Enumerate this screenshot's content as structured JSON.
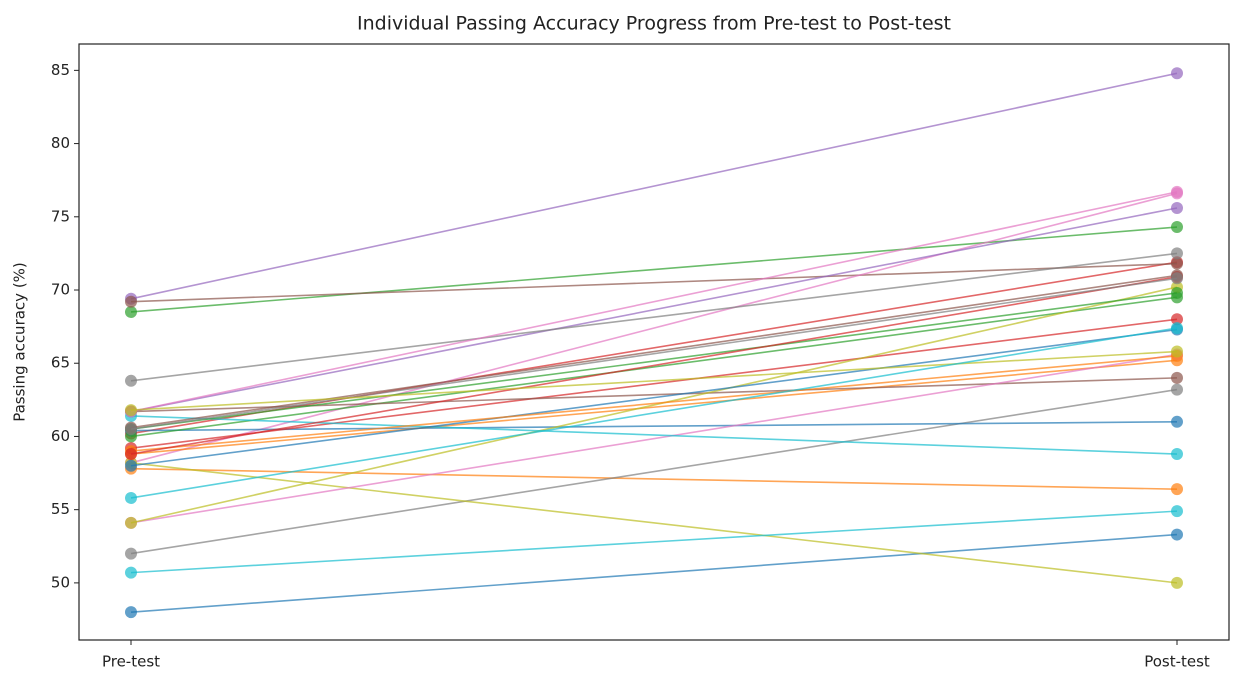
{
  "chart_data": {
    "type": "slope",
    "title": "Individual Passing Accuracy Progress from Pre-test to Post-test",
    "ylabel": "Passing accuracy (%)",
    "categories": [
      "Pre-test",
      "Post-test"
    ],
    "ylim": [
      46.1,
      86.8
    ],
    "yticks": [
      50,
      55,
      60,
      65,
      70,
      75,
      80,
      85
    ],
    "grid": false,
    "series": [
      {
        "color": "#1f77b4",
        "values": [
          48.0,
          53.3
        ]
      },
      {
        "color": "#ff7f0e",
        "values": [
          57.8,
          56.4
        ]
      },
      {
        "color": "#2ca02c",
        "values": [
          68.5,
          74.3
        ]
      },
      {
        "color": "#d62728",
        "values": [
          60.2,
          71.9
        ]
      },
      {
        "color": "#9467bd",
        "values": [
          69.4,
          84.8
        ]
      },
      {
        "color": "#8c564b",
        "values": [
          69.2,
          71.8
        ]
      },
      {
        "color": "#e377c2",
        "values": [
          58.2,
          76.6
        ]
      },
      {
        "color": "#7f7f7f",
        "values": [
          52.0,
          63.2
        ]
      },
      {
        "color": "#bcbd22",
        "values": [
          58.2,
          50.0
        ]
      },
      {
        "color": "#17becf",
        "values": [
          50.7,
          54.9
        ]
      },
      {
        "color": "#1f77b4",
        "values": [
          60.4,
          61.0
        ]
      },
      {
        "color": "#ff7f0e",
        "values": [
          58.8,
          65.2
        ]
      },
      {
        "color": "#2ca02c",
        "values": [
          60.0,
          69.5
        ]
      },
      {
        "color": "#d62728",
        "values": [
          59.2,
          68.0
        ]
      },
      {
        "color": "#9467bd",
        "values": [
          61.7,
          75.6
        ]
      },
      {
        "color": "#8c564b",
        "values": [
          61.7,
          64.0
        ]
      },
      {
        "color": "#e377c2",
        "values": [
          54.1,
          65.6
        ]
      },
      {
        "color": "#7f7f7f",
        "values": [
          63.8,
          72.5
        ]
      },
      {
        "color": "#bcbd22",
        "values": [
          54.1,
          70.2
        ]
      },
      {
        "color": "#17becf",
        "values": [
          61.4,
          58.8
        ]
      },
      {
        "color": "#1f77b4",
        "values": [
          58.0,
          67.3
        ]
      },
      {
        "color": "#ff7f0e",
        "values": [
          59.0,
          65.5
        ]
      },
      {
        "color": "#2ca02c",
        "values": [
          60.5,
          69.8
        ]
      },
      {
        "color": "#d62728",
        "values": [
          58.8,
          70.9
        ]
      },
      {
        "color": "#8c564b",
        "values": [
          60.6,
          71.0
        ]
      },
      {
        "color": "#e377c2",
        "values": [
          61.7,
          76.7
        ]
      },
      {
        "color": "#7f7f7f",
        "values": [
          60.5,
          70.8
        ]
      },
      {
        "color": "#bcbd22",
        "values": [
          61.8,
          65.8
        ]
      },
      {
        "color": "#17becf",
        "values": [
          55.8,
          67.4
        ]
      }
    ]
  }
}
